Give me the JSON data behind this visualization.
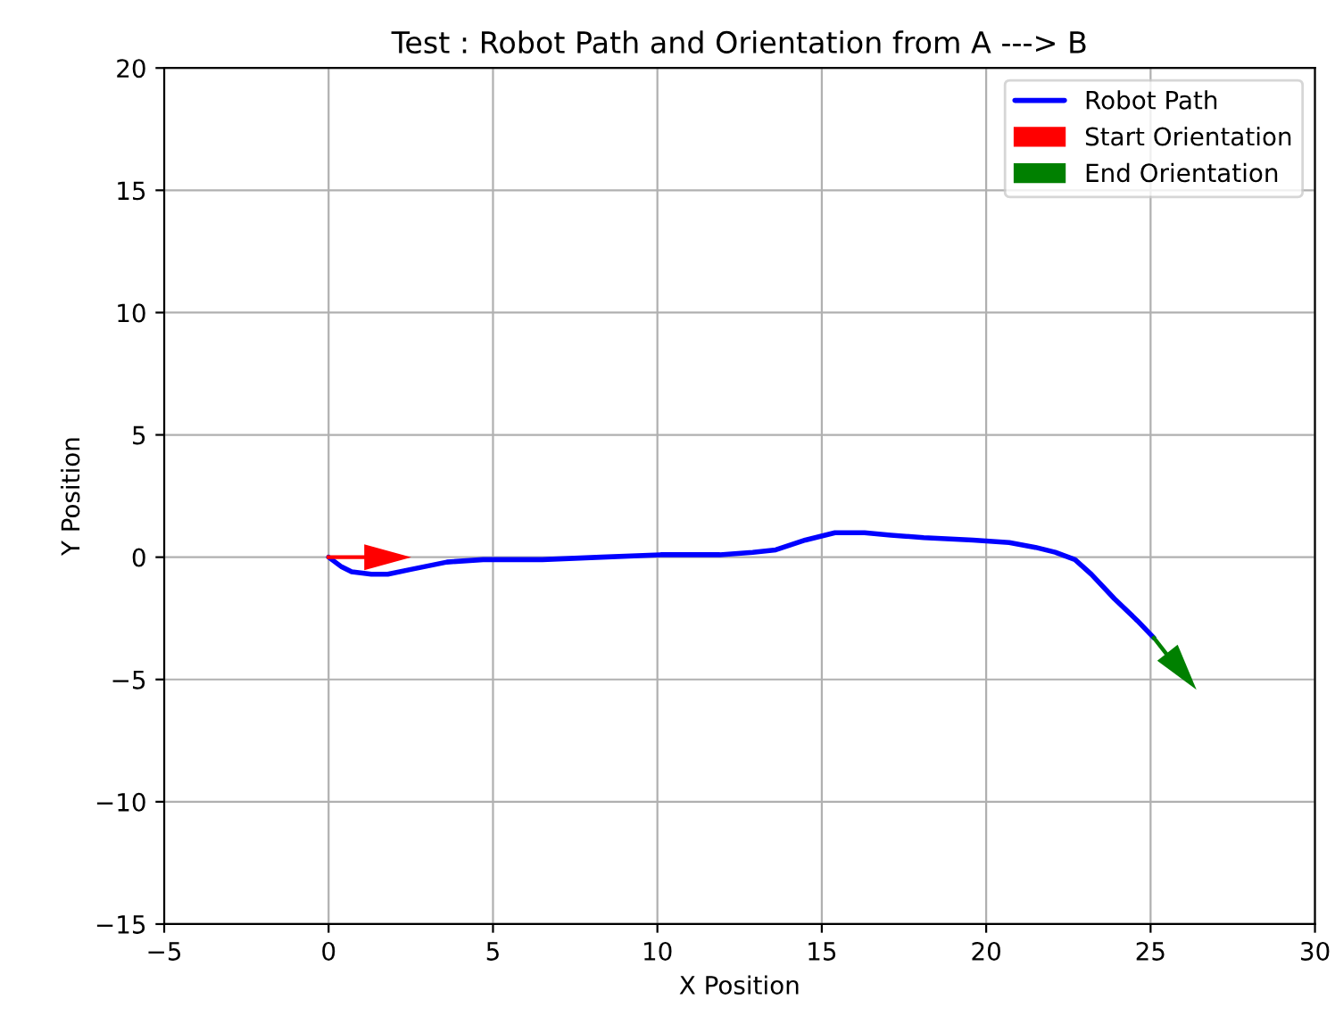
{
  "chart_data": {
    "type": "line",
    "title": "Test : Robot Path and Orientation from A ---> B",
    "xlabel": "X Position",
    "ylabel": "Y Position",
    "series": [
      {
        "name": "Robot Path",
        "color": "#0000ff",
        "x": [
          0,
          0.4,
          0.7,
          1.3,
          1.8,
          2.5,
          3.6,
          4.7,
          6.5,
          8.3,
          10.1,
          11.9,
          12.9,
          13.6,
          14.5,
          15.4,
          16.3,
          17.1,
          18.1,
          19.6,
          20.7,
          21.5,
          22.1,
          22.7,
          23.2,
          23.9,
          24.6,
          25.1
        ],
        "values": [
          0,
          -0.4,
          -0.6,
          -0.7,
          -0.7,
          -0.5,
          -0.2,
          -0.1,
          -0.1,
          0,
          0.1,
          0.1,
          0.2,
          0.3,
          0.7,
          1.0,
          1.0,
          0.9,
          0.8,
          0.7,
          0.6,
          0.4,
          0.2,
          -0.1,
          -0.7,
          -1.7,
          -2.6,
          -3.3
        ]
      },
      {
        "name": "Start Orientation",
        "marker": "triangle",
        "color": "#ff0000",
        "x": [
          0,
          1.8
        ],
        "values": [
          0,
          0
        ]
      },
      {
        "name": "End Orientation",
        "marker": "triangle",
        "color": "#008000",
        "x": [
          25.1,
          25.8
        ],
        "values": [
          -3.3,
          -4.5
        ]
      }
    ],
    "xlim": [
      -5,
      30
    ],
    "ylim": [
      -15,
      20
    ],
    "xticks": [
      -5,
      0,
      5,
      10,
      15,
      20,
      25,
      30
    ],
    "yticks": [
      -15,
      -10,
      -5,
      0,
      5,
      10,
      15,
      20
    ],
    "grid": true,
    "legend": "top right",
    "line_style": "solid"
  }
}
